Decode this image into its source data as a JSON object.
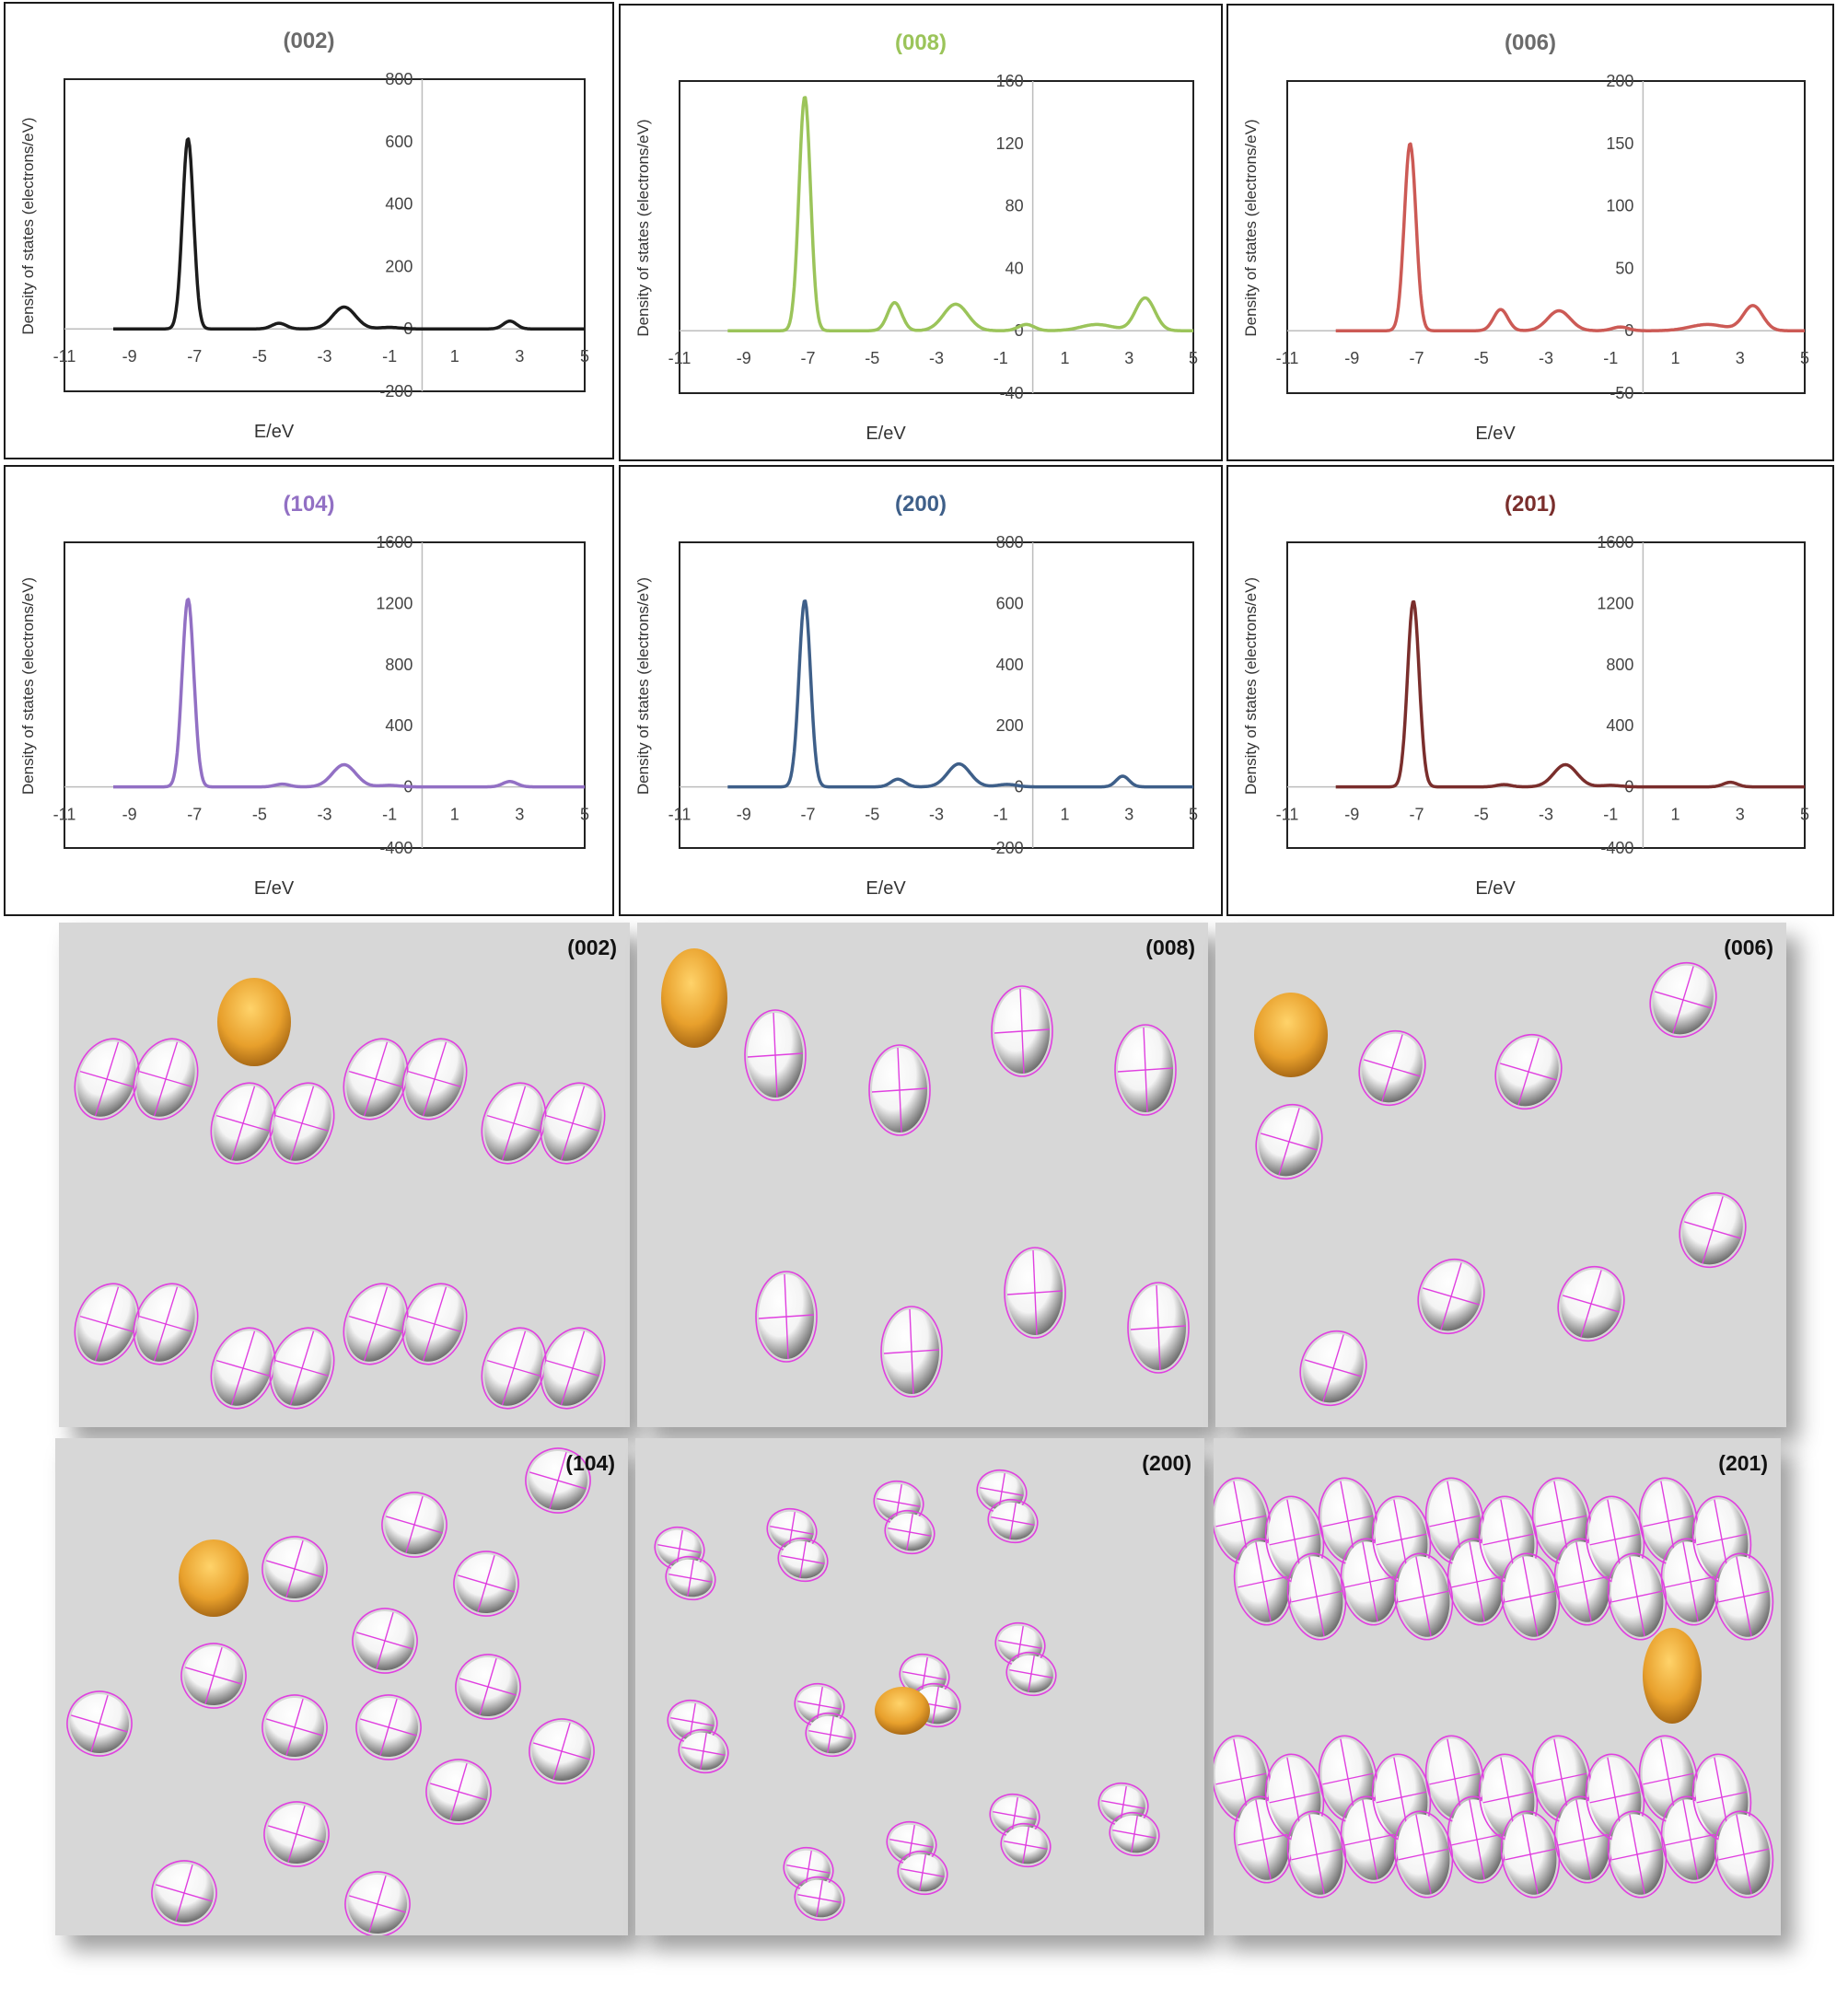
{
  "axis_common": {
    "xlabel": "E/eV",
    "ylabel": "Density of states (electrons/eV)",
    "x_ticks": [
      "-11",
      "-9",
      "-7",
      "-5",
      "-3",
      "-1",
      "1",
      "3",
      "5"
    ]
  },
  "chart_data": [
    {
      "type": "line",
      "title": "(002)",
      "color": "#1c1c1c",
      "xlabel": "E/eV",
      "ylabel": "Density of states (electrons/eV)",
      "xlim": [
        -11,
        5
      ],
      "ylim": [
        -200,
        800
      ],
      "y_ticks": [
        "-200",
        "0",
        "200",
        "400",
        "600",
        "800"
      ],
      "peaks": [
        [
          -7.2,
          610,
          0.17
        ],
        [
          -4.4,
          18,
          0.22
        ],
        [
          -2.4,
          70,
          0.35
        ],
        [
          -1.0,
          5,
          0.3
        ],
        [
          2.7,
          25,
          0.2
        ]
      ],
      "x_range": [
        -9.5,
        5
      ]
    },
    {
      "type": "line",
      "title": "(008)",
      "color": "#9bc45a",
      "xlabel": "E/eV",
      "ylabel": "Density of states (electrons/eV)",
      "xlim": [
        -11,
        5
      ],
      "ylim": [
        -40,
        160
      ],
      "y_ticks": [
        "-40",
        "0",
        "40",
        "80",
        "120",
        "160"
      ],
      "peaks": [
        [
          -7.1,
          150,
          0.18
        ],
        [
          -4.3,
          18,
          0.22
        ],
        [
          -2.4,
          17,
          0.38
        ],
        [
          -0.2,
          4,
          0.25
        ],
        [
          2.0,
          4,
          0.5
        ],
        [
          3.5,
          21,
          0.3
        ]
      ],
      "x_range": [
        -9.5,
        5
      ]
    },
    {
      "type": "line",
      "title": "(006)",
      "color": "#cc5a55",
      "xlabel": "E/eV",
      "ylabel": "Density of states (electrons/eV)",
      "xlim": [
        -11,
        5
      ],
      "ylim": [
        -50,
        200
      ],
      "y_ticks": [
        "-50",
        "0",
        "50",
        "100",
        "150",
        "200"
      ],
      "peaks": [
        [
          -7.2,
          150,
          0.18
        ],
        [
          -4.4,
          17,
          0.22
        ],
        [
          -2.6,
          16,
          0.35
        ],
        [
          -0.7,
          3,
          0.25
        ],
        [
          2.0,
          5,
          0.55
        ],
        [
          3.4,
          20,
          0.3
        ]
      ],
      "x_range": [
        -9.5,
        5
      ]
    },
    {
      "type": "line",
      "title": "(104)",
      "color": "#9270c4",
      "xlabel": "E/eV",
      "ylabel": "Density of states (electrons/eV)",
      "xlim": [
        -11,
        5
      ],
      "ylim": [
        -400,
        1600
      ],
      "y_ticks": [
        "-400",
        "0",
        "400",
        "800",
        "1200",
        "1600"
      ],
      "peaks": [
        [
          -7.2,
          1230,
          0.18
        ],
        [
          -4.3,
          18,
          0.22
        ],
        [
          -2.4,
          145,
          0.36
        ],
        [
          -1.0,
          10,
          0.3
        ],
        [
          2.7,
          35,
          0.22
        ]
      ],
      "x_range": [
        -9.5,
        5
      ]
    },
    {
      "type": "line",
      "title": "(200)",
      "color": "#3e5f89",
      "xlabel": "E/eV",
      "ylabel": "Density of states (electrons/eV)",
      "xlim": [
        -11,
        5
      ],
      "ylim": [
        -200,
        800
      ],
      "y_ticks": [
        "-200",
        "0",
        "200",
        "400",
        "600",
        "800"
      ],
      "peaks": [
        [
          -7.1,
          610,
          0.18
        ],
        [
          -4.2,
          25,
          0.22
        ],
        [
          -2.3,
          75,
          0.35
        ],
        [
          -0.8,
          8,
          0.3
        ],
        [
          2.8,
          35,
          0.2
        ]
      ],
      "x_range": [
        -9.5,
        5
      ]
    },
    {
      "type": "line",
      "title": "(201)",
      "color": "#7a2e2c",
      "xlabel": "E/eV",
      "ylabel": "Density of states (electrons/eV)",
      "xlim": [
        -11,
        5
      ],
      "ylim": [
        -400,
        1600
      ],
      "y_ticks": [
        "-400",
        "0",
        "400",
        "800",
        "1200",
        "1600"
      ],
      "peaks": [
        [
          -7.1,
          1215,
          0.18
        ],
        [
          -4.3,
          15,
          0.22
        ],
        [
          -2.4,
          145,
          0.36
        ],
        [
          -1.0,
          10,
          0.3
        ],
        [
          2.7,
          30,
          0.22
        ]
      ],
      "x_range": [
        -9.5,
        5
      ]
    }
  ],
  "structures": [
    {
      "label": "(002)"
    },
    {
      "label": "(008)"
    },
    {
      "label": "(006)"
    },
    {
      "label": "(104)"
    },
    {
      "label": "(200)"
    },
    {
      "label": "(201)"
    }
  ],
  "colors": {
    "gold_atom": "#e8a02c",
    "white_atom": "#f4f4f4",
    "orbit_magenta": "#e040e0",
    "panel_bg": "#d7d7d7"
  }
}
